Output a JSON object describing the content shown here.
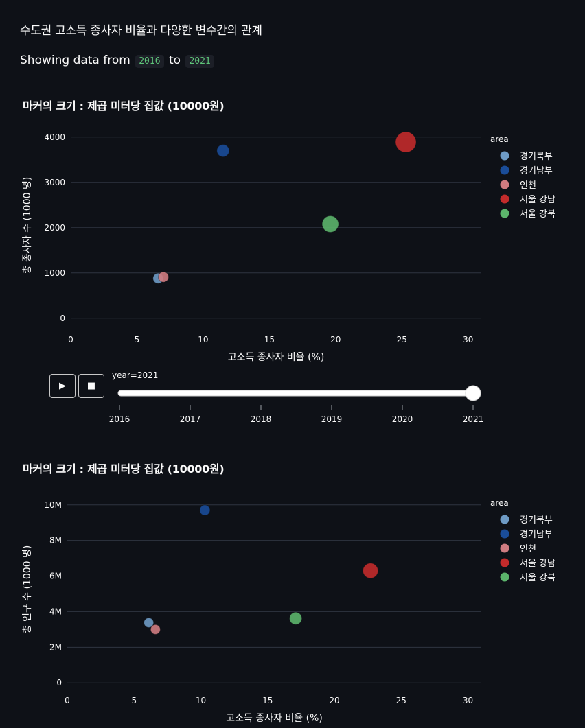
{
  "subheader": "수도권 고소득 종사자 비율과 다양한 변수간의 관계",
  "range": {
    "prefix": "Showing data from",
    "start": "2016",
    "joiner": "to",
    "end": "2021"
  },
  "colors": {
    "background": "#0e1117",
    "grid": "#2f3441",
    "series": {
      "경기북부": "#6e9bc5",
      "경기남부": "#1a4d99",
      "인천": "#cf7c81",
      "서울 강남": "#c22b2b",
      "서울 강북": "#5cb56c"
    }
  },
  "slider": {
    "label": "year=2021",
    "ticks": [
      "2016",
      "2017",
      "2018",
      "2019",
      "2020",
      "2021"
    ],
    "value": "2021",
    "play_icon": "play-icon",
    "stop_icon": "stop-icon"
  },
  "chart_data": [
    {
      "type": "scatter",
      "title": "마커의 크기 : 제곱 미터당 집값 (10000원)",
      "xlabel": "고소득 종사자 비율 (%)",
      "ylabel": "총 종사자 수 (1000 명)",
      "xlim": [
        0,
        31
      ],
      "ylim": [
        -200,
        4300
      ],
      "xticks": [
        0,
        5,
        10,
        15,
        20,
        25,
        30
      ],
      "xtick_labels": [
        "0",
        "5",
        "10",
        "15",
        "20",
        "25",
        "30"
      ],
      "yticks": [
        0,
        1000,
        2000,
        3000,
        4000
      ],
      "ytick_labels": [
        "0",
        "1000",
        "2000",
        "3000",
        "4000"
      ],
      "legend_title": "area",
      "legend_position": "right",
      "series": [
        {
          "name": "경기북부",
          "x": 6.6,
          "y": 880,
          "size": 7.5
        },
        {
          "name": "경기남부",
          "x": 11.5,
          "y": 3700,
          "size": 9
        },
        {
          "name": "인천",
          "x": 7.0,
          "y": 910,
          "size": 7.5
        },
        {
          "name": "서울 강남",
          "x": 25.3,
          "y": 3890,
          "size": 15
        },
        {
          "name": "서울 강북",
          "x": 19.6,
          "y": 2080,
          "size": 12
        }
      ]
    },
    {
      "type": "scatter",
      "title": "마커의 크기 : 제곱 미터당 집값 (10000원)",
      "xlabel": "고소득 종사자 비율 (%)",
      "ylabel": "총 인구 수 (1000 명)",
      "xlim": [
        0,
        31
      ],
      "ylim": [
        -300000,
        10800000
      ],
      "xticks": [
        0,
        5,
        10,
        15,
        20,
        25,
        30
      ],
      "xtick_labels": [
        "0",
        "5",
        "10",
        "15",
        "20",
        "25",
        "30"
      ],
      "yticks": [
        0,
        2000000,
        4000000,
        6000000,
        8000000,
        10000000
      ],
      "ytick_labels": [
        "0",
        "2M",
        "4M",
        "6M",
        "8M",
        "10M"
      ],
      "legend_title": "area",
      "legend_position": "right",
      "series": [
        {
          "name": "경기북부",
          "x": 6.1,
          "y": 3380000,
          "size": 7
        },
        {
          "name": "경기남부",
          "x": 10.3,
          "y": 9700000,
          "size": 7.5
        },
        {
          "name": "인천",
          "x": 6.6,
          "y": 3000000,
          "size": 7
        },
        {
          "name": "서울 강남",
          "x": 22.7,
          "y": 6300000,
          "size": 11
        },
        {
          "name": "서울 강북",
          "x": 17.1,
          "y": 3620000,
          "size": 9
        }
      ]
    }
  ]
}
